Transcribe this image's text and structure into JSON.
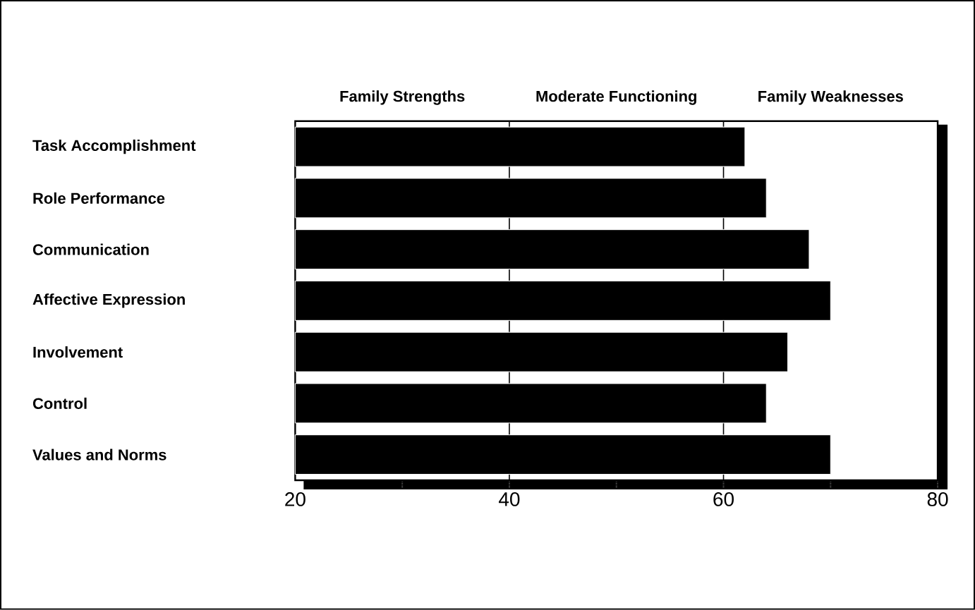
{
  "chart_data": {
    "type": "bar",
    "orientation": "horizontal",
    "categories": [
      "Task Accomplishment",
      "Role Performance",
      "Communication",
      "Affective Expression",
      "Involvement",
      "Control",
      "Values and Norms"
    ],
    "values": [
      62,
      64,
      68,
      70,
      66,
      64,
      70
    ],
    "color": "#000000",
    "xlim": [
      20,
      80
    ],
    "xticks": [
      20,
      {
        "value": 30,
        "label": null
      },
      40,
      {
        "value": 50,
        "label": null
      },
      60,
      {
        "value": 70,
        "label": null
      },
      80
    ],
    "grid": "x",
    "annotations": [
      "Family Strengths",
      "Moderate Functioning",
      "Family Weaknesses"
    ]
  }
}
